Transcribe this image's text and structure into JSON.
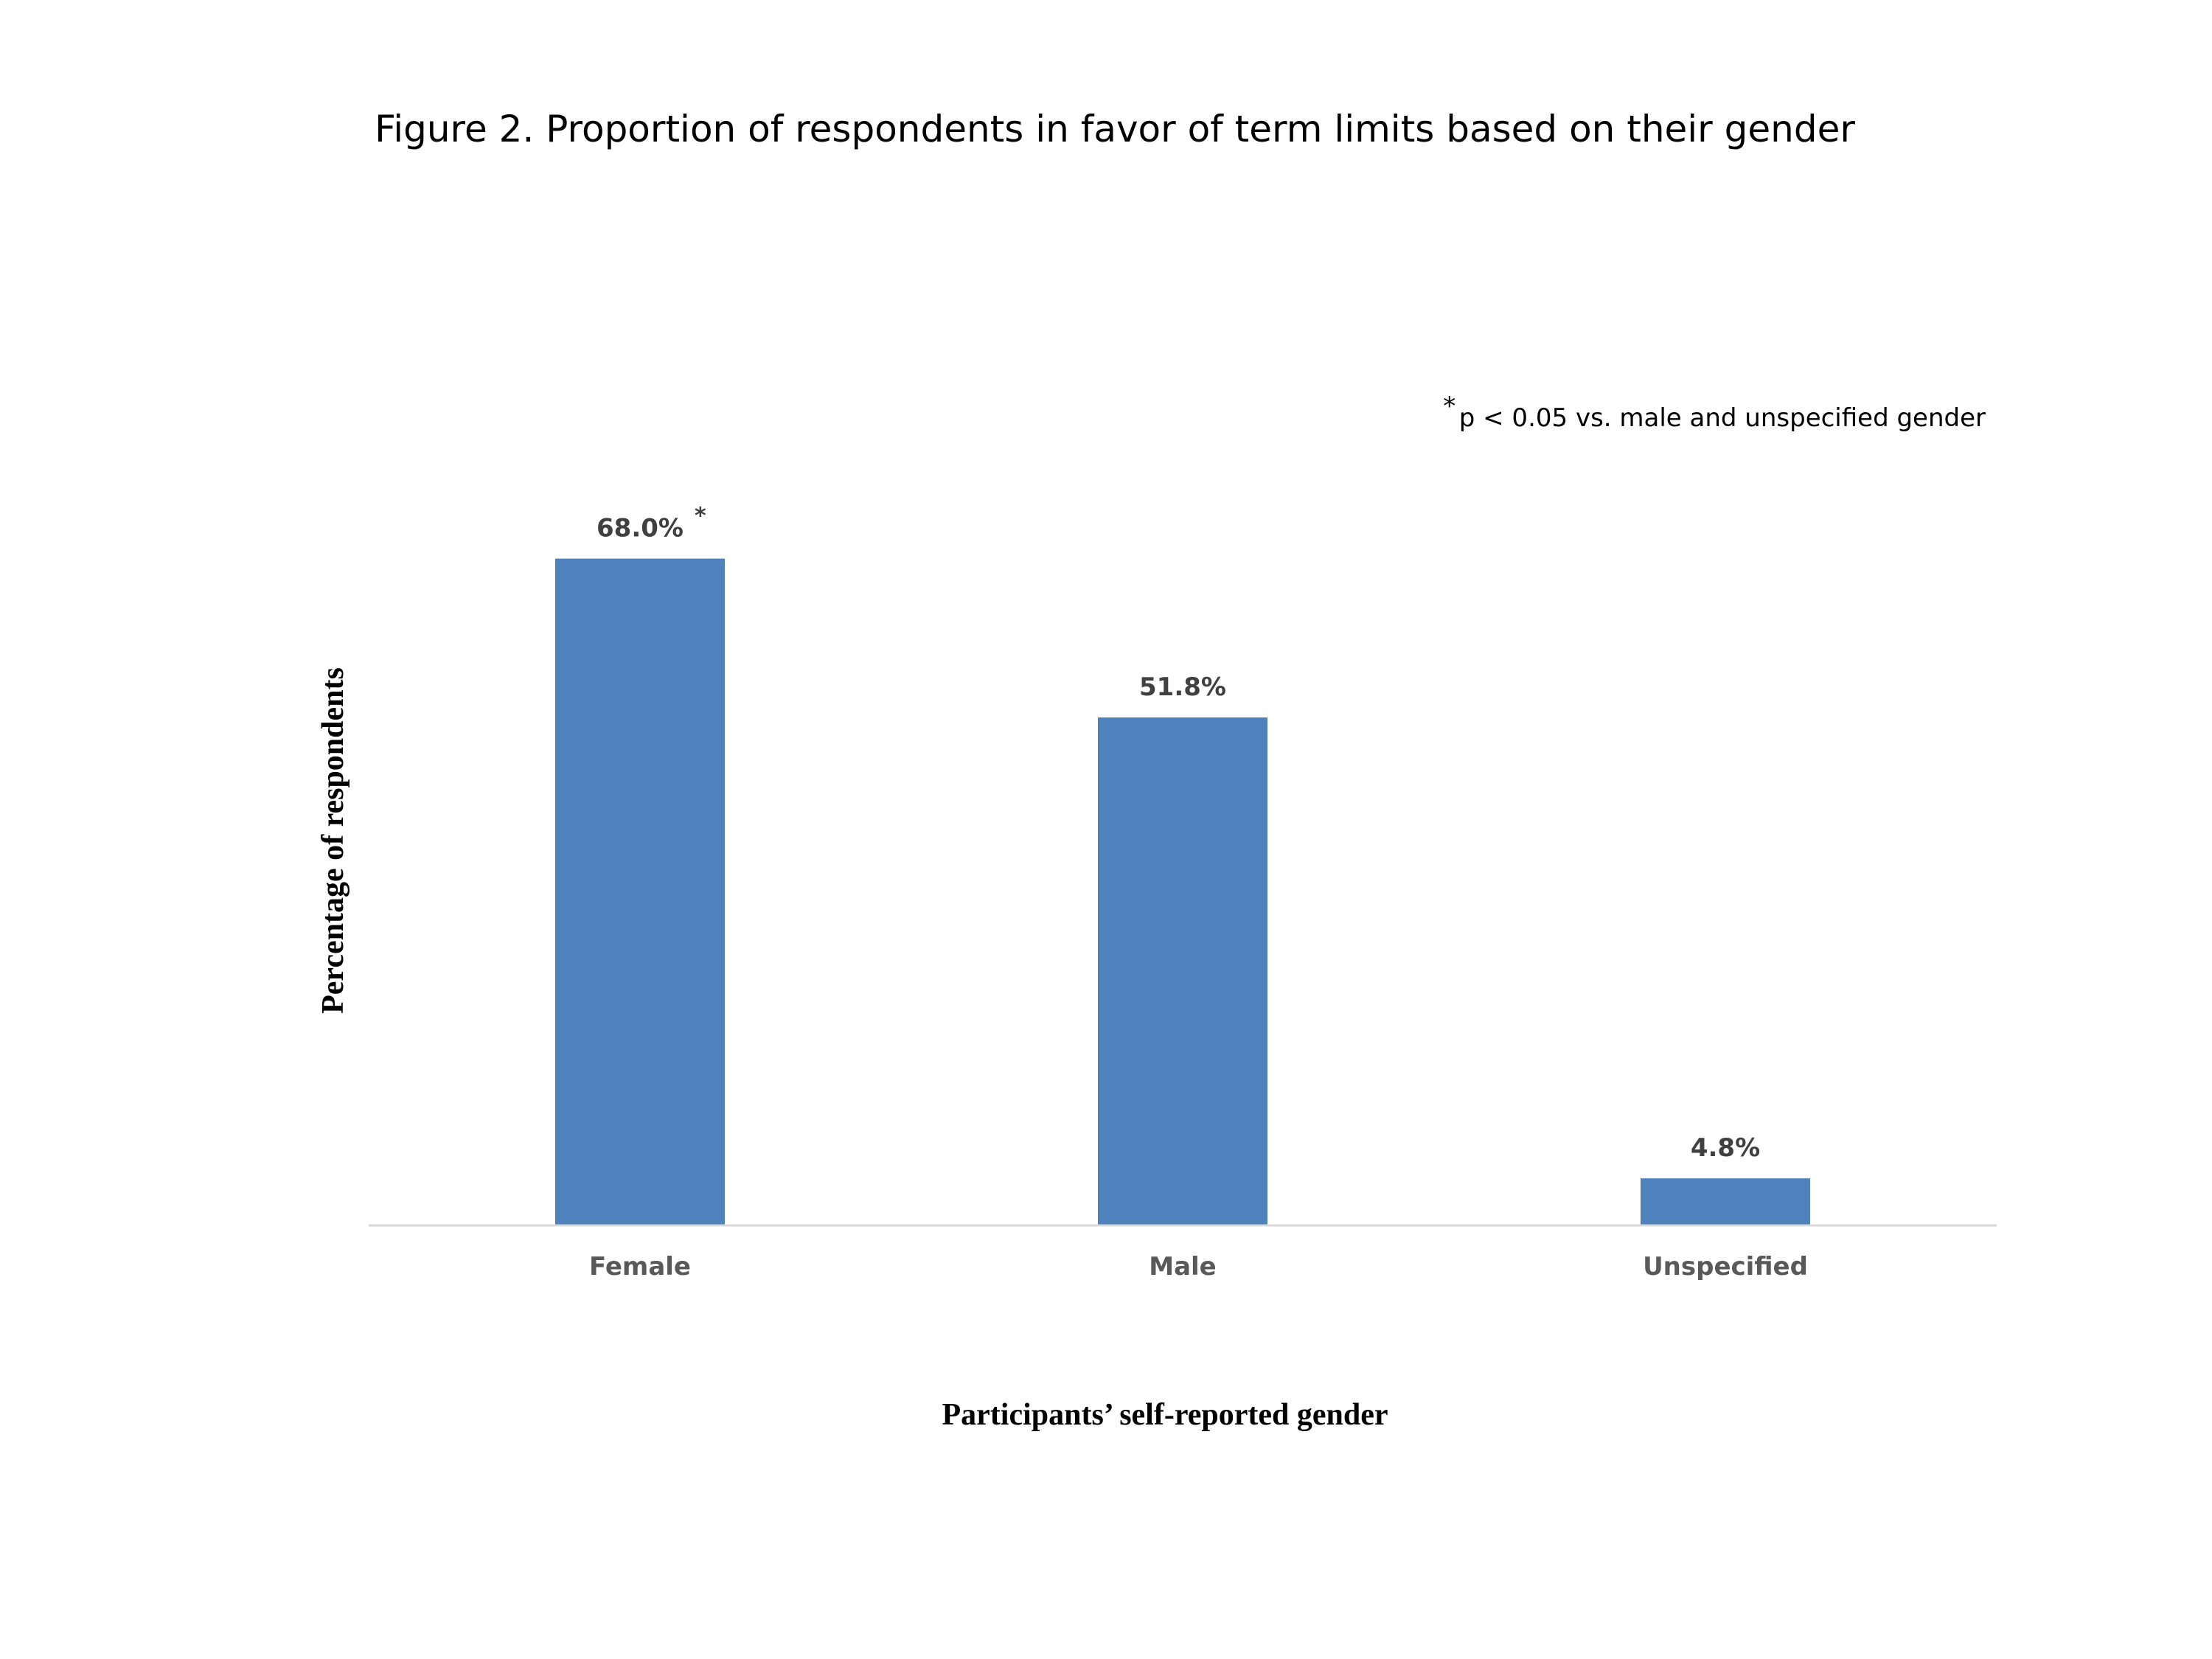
{
  "chart_data": {
    "type": "bar",
    "title": "Figure 2. Proportion of respondents in favor of term limits based on their gender",
    "xlabel": "Participants’ self-reported gender",
    "ylabel": "Percentage of respondents",
    "categories": [
      "Female",
      "Male",
      "Unspecified"
    ],
    "values": [
      68.0,
      51.8,
      4.8
    ],
    "data_labels": [
      "68.0%",
      "51.8%",
      "4.8%"
    ],
    "significance_marks": [
      "*",
      "",
      ""
    ],
    "note": {
      "marker": "*",
      "text": "p < 0.05 vs. male and unspecified gender"
    },
    "ylim": [
      0,
      70
    ],
    "grid": false,
    "legend": "none",
    "bar_color": "#4f81bd",
    "axis_color": "#d9d9d9"
  }
}
